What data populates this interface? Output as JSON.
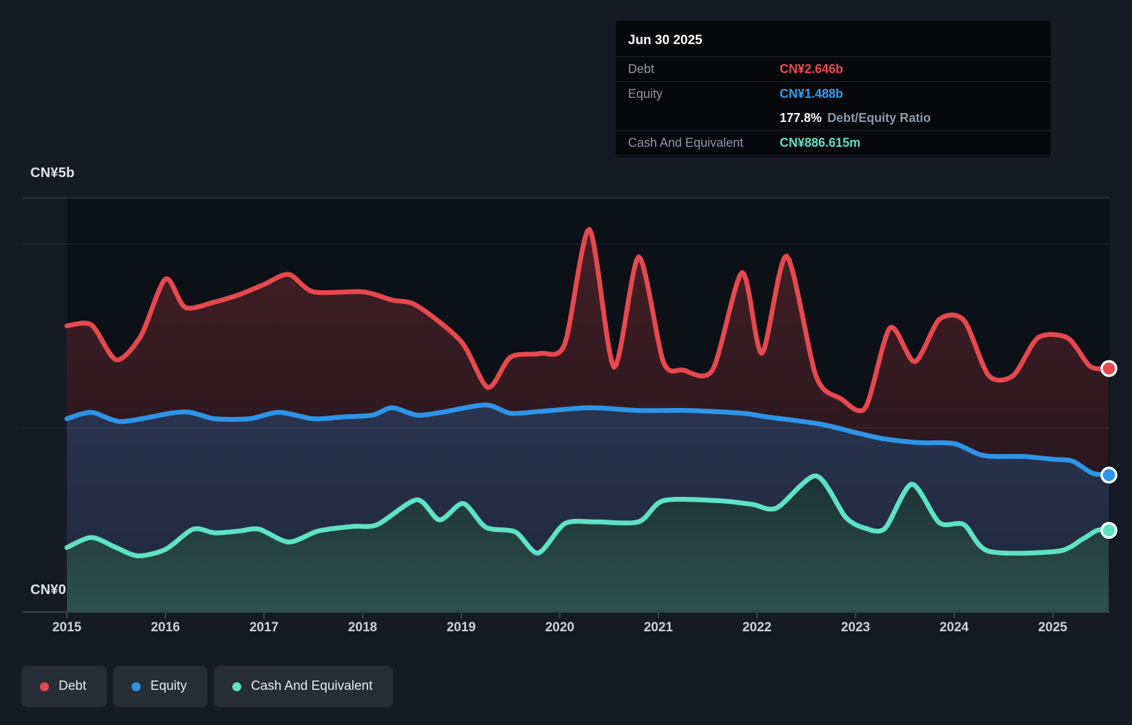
{
  "page": {
    "background": "#151a24",
    "plot_background": "#0c1017"
  },
  "axis": {
    "y_top_label": "CN¥5b",
    "y_bottom_label": "CN¥0",
    "x_ticks": [
      "2015",
      "2016",
      "2017",
      "2018",
      "2019",
      "2020",
      "2021",
      "2022",
      "2023",
      "2024",
      "2025"
    ]
  },
  "tooltip": {
    "date": "Jun 30 2025",
    "debt_label": "Debt",
    "debt_value": "CN¥2.646b",
    "debt_color": "#ef4a50",
    "equity_label": "Equity",
    "equity_value": "CN¥1.488b",
    "equity_color": "#2f9ff2",
    "ratio_value": "177.8%",
    "ratio_label": "Debt/Equity Ratio",
    "cash_label": "Cash And Equivalent",
    "cash_value": "CN¥886.615m",
    "cash_color": "#5ee2c4"
  },
  "legend": {
    "items": [
      {
        "label": "Debt",
        "color": "#e5484d"
      },
      {
        "label": "Equity",
        "color": "#2e94e8"
      },
      {
        "label": "Cash And Equivalent",
        "color": "#5ee2c4"
      }
    ]
  },
  "chart_data": {
    "type": "area",
    "title": "Debt to Equity History",
    "unit": "CN¥ billions",
    "x_range": [
      2015,
      2025.57
    ],
    "ylim": [
      0,
      5
    ],
    "grid": "horizontal",
    "gridline_values_b": [
      4.5,
      4,
      2,
      0
    ],
    "legend_position": "bottom-left",
    "tooltip_point": {
      "date": "Jun 30 2025",
      "debt_b": 2.646,
      "equity_b": 1.488,
      "cash_b": 0.886615,
      "debt_equity_ratio_pct": 177.8
    },
    "series": [
      {
        "name": "Debt",
        "color": "#e5484d",
        "points": [
          [
            2015.0,
            3.11
          ],
          [
            2015.25,
            3.12
          ],
          [
            2015.5,
            2.74
          ],
          [
            2015.75,
            3.0
          ],
          [
            2016.0,
            3.62
          ],
          [
            2016.2,
            3.31
          ],
          [
            2016.5,
            3.37
          ],
          [
            2016.75,
            3.45
          ],
          [
            2017.0,
            3.56
          ],
          [
            2017.25,
            3.67
          ],
          [
            2017.5,
            3.48
          ],
          [
            2018.0,
            3.48
          ],
          [
            2018.3,
            3.39
          ],
          [
            2018.55,
            3.33
          ],
          [
            2019.0,
            2.94
          ],
          [
            2019.27,
            2.44
          ],
          [
            2019.5,
            2.77
          ],
          [
            2019.8,
            2.81
          ],
          [
            2020.05,
            2.91
          ],
          [
            2020.3,
            4.16
          ],
          [
            2020.55,
            2.66
          ],
          [
            2020.8,
            3.86
          ],
          [
            2021.05,
            2.72
          ],
          [
            2021.25,
            2.63
          ],
          [
            2021.55,
            2.63
          ],
          [
            2021.85,
            3.69
          ],
          [
            2022.05,
            2.81
          ],
          [
            2022.3,
            3.87
          ],
          [
            2022.6,
            2.56
          ],
          [
            2022.85,
            2.32
          ],
          [
            2023.1,
            2.22
          ],
          [
            2023.35,
            3.09
          ],
          [
            2023.6,
            2.72
          ],
          [
            2023.85,
            3.18
          ],
          [
            2024.1,
            3.17
          ],
          [
            2024.35,
            2.57
          ],
          [
            2024.6,
            2.57
          ],
          [
            2024.85,
            2.98
          ],
          [
            2025.15,
            2.98
          ],
          [
            2025.38,
            2.67
          ],
          [
            2025.57,
            2.646
          ]
        ]
      },
      {
        "name": "Equity",
        "color": "#2e94e8",
        "points": [
          [
            2015.0,
            2.1
          ],
          [
            2015.25,
            2.17
          ],
          [
            2015.55,
            2.07
          ],
          [
            2016.05,
            2.16
          ],
          [
            2016.25,
            2.17
          ],
          [
            2016.5,
            2.1
          ],
          [
            2016.85,
            2.1
          ],
          [
            2017.15,
            2.17
          ],
          [
            2017.5,
            2.1
          ],
          [
            2017.8,
            2.12
          ],
          [
            2018.1,
            2.14
          ],
          [
            2018.3,
            2.22
          ],
          [
            2018.55,
            2.14
          ],
          [
            2018.8,
            2.17
          ],
          [
            2019.25,
            2.25
          ],
          [
            2019.5,
            2.16
          ],
          [
            2019.8,
            2.18
          ],
          [
            2020.3,
            2.22
          ],
          [
            2020.8,
            2.19
          ],
          [
            2021.3,
            2.19
          ],
          [
            2021.85,
            2.16
          ],
          [
            2022.1,
            2.12
          ],
          [
            2022.4,
            2.08
          ],
          [
            2022.7,
            2.03
          ],
          [
            2023.0,
            1.95
          ],
          [
            2023.3,
            1.88
          ],
          [
            2023.65,
            1.84
          ],
          [
            2024.0,
            1.83
          ],
          [
            2024.3,
            1.7
          ],
          [
            2024.7,
            1.69
          ],
          [
            2025.0,
            1.66
          ],
          [
            2025.2,
            1.64
          ],
          [
            2025.4,
            1.51
          ],
          [
            2025.57,
            1.488
          ]
        ]
      },
      {
        "name": "Cash And Equivalent",
        "color": "#5ee2c4",
        "points": [
          [
            2015.0,
            0.7
          ],
          [
            2015.25,
            0.81
          ],
          [
            2015.5,
            0.7
          ],
          [
            2015.72,
            0.61
          ],
          [
            2016.0,
            0.68
          ],
          [
            2016.28,
            0.9
          ],
          [
            2016.5,
            0.86
          ],
          [
            2016.75,
            0.88
          ],
          [
            2016.95,
            0.9
          ],
          [
            2017.25,
            0.76
          ],
          [
            2017.55,
            0.88
          ],
          [
            2017.9,
            0.93
          ],
          [
            2018.15,
            0.95
          ],
          [
            2018.55,
            1.22
          ],
          [
            2018.78,
            1.0
          ],
          [
            2019.02,
            1.18
          ],
          [
            2019.25,
            0.92
          ],
          [
            2019.55,
            0.87
          ],
          [
            2019.78,
            0.64
          ],
          [
            2020.05,
            0.96
          ],
          [
            2020.35,
            0.98
          ],
          [
            2020.8,
            0.98
          ],
          [
            2021.05,
            1.21
          ],
          [
            2021.6,
            1.21
          ],
          [
            2021.95,
            1.17
          ],
          [
            2022.2,
            1.13
          ],
          [
            2022.6,
            1.48
          ],
          [
            2022.9,
            1.03
          ],
          [
            2023.1,
            0.91
          ],
          [
            2023.3,
            0.91
          ],
          [
            2023.57,
            1.39
          ],
          [
            2023.85,
            0.97
          ],
          [
            2024.1,
            0.95
          ],
          [
            2024.35,
            0.66
          ],
          [
            2025.05,
            0.66
          ],
          [
            2025.3,
            0.79
          ],
          [
            2025.45,
            0.887
          ],
          [
            2025.57,
            0.887
          ]
        ]
      }
    ]
  }
}
